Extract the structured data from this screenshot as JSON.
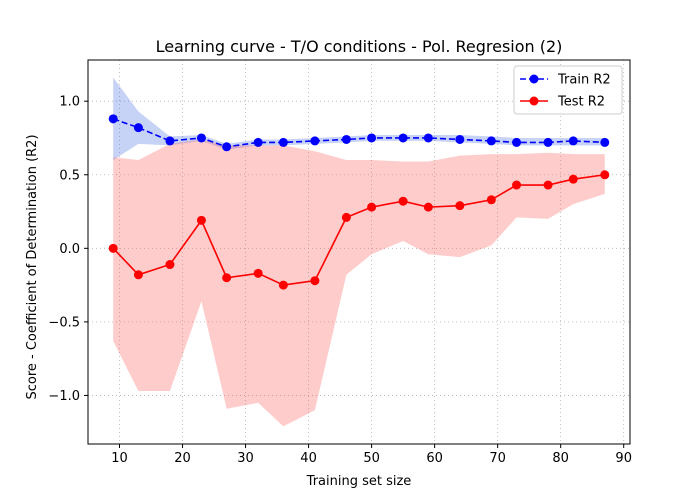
{
  "chart_data": {
    "type": "line",
    "title": "Learning curve - T/O conditions - Pol. Regresion (2)",
    "xlabel": "Training set size",
    "ylabel": "Score - Coefficient of Determination (R2)",
    "xlim": [
      5,
      91
    ],
    "ylim": [
      -1.33,
      1.28
    ],
    "xticks": [
      10,
      20,
      30,
      40,
      50,
      60,
      70,
      80,
      90
    ],
    "yticks": [
      -1.0,
      -0.5,
      0.0,
      0.5,
      1.0
    ],
    "ytick_labels": [
      "−1.0",
      "−0.5",
      "0.0",
      "0.5",
      "1.0"
    ],
    "grid": true,
    "legend_position": "top-right",
    "x": [
      9,
      13,
      18,
      23,
      27,
      32,
      36,
      41,
      46,
      50,
      55,
      59,
      64,
      69,
      73,
      78,
      82,
      87
    ],
    "series": [
      {
        "name": "Train R2",
        "color": "#0000ff",
        "line_style": "dashed",
        "values": [
          0.88,
          0.82,
          0.73,
          0.75,
          0.69,
          0.72,
          0.72,
          0.73,
          0.74,
          0.75,
          0.75,
          0.75,
          0.74,
          0.73,
          0.72,
          0.72,
          0.73,
          0.72
        ],
        "band_color": "#4169e1",
        "band_upper": [
          1.16,
          0.93,
          0.76,
          0.77,
          0.71,
          0.74,
          0.74,
          0.75,
          0.76,
          0.77,
          0.77,
          0.77,
          0.77,
          0.76,
          0.75,
          0.75,
          0.75,
          0.75
        ],
        "band_lower": [
          0.6,
          0.71,
          0.7,
          0.73,
          0.67,
          0.7,
          0.7,
          0.71,
          0.72,
          0.73,
          0.73,
          0.73,
          0.72,
          0.71,
          0.7,
          0.7,
          0.7,
          0.7
        ]
      },
      {
        "name": "Test R2",
        "color": "#ff0000",
        "line_style": "solid",
        "values": [
          0.0,
          -0.18,
          -0.11,
          0.19,
          -0.2,
          -0.17,
          -0.25,
          -0.22,
          0.21,
          0.28,
          0.32,
          0.28,
          0.29,
          0.33,
          0.43,
          0.43,
          0.47,
          0.5
        ],
        "band_color": "#ff5555",
        "band_upper": [
          0.62,
          0.6,
          0.71,
          0.74,
          0.7,
          0.7,
          0.7,
          0.66,
          0.6,
          0.6,
          0.59,
          0.59,
          0.63,
          0.64,
          0.64,
          0.65,
          0.64,
          0.64
        ],
        "band_lower": [
          -0.63,
          -0.97,
          -0.97,
          -0.36,
          -1.09,
          -1.05,
          -1.21,
          -1.1,
          -0.18,
          -0.04,
          0.05,
          -0.04,
          -0.06,
          0.02,
          0.21,
          0.2,
          0.3,
          0.37
        ]
      }
    ]
  }
}
